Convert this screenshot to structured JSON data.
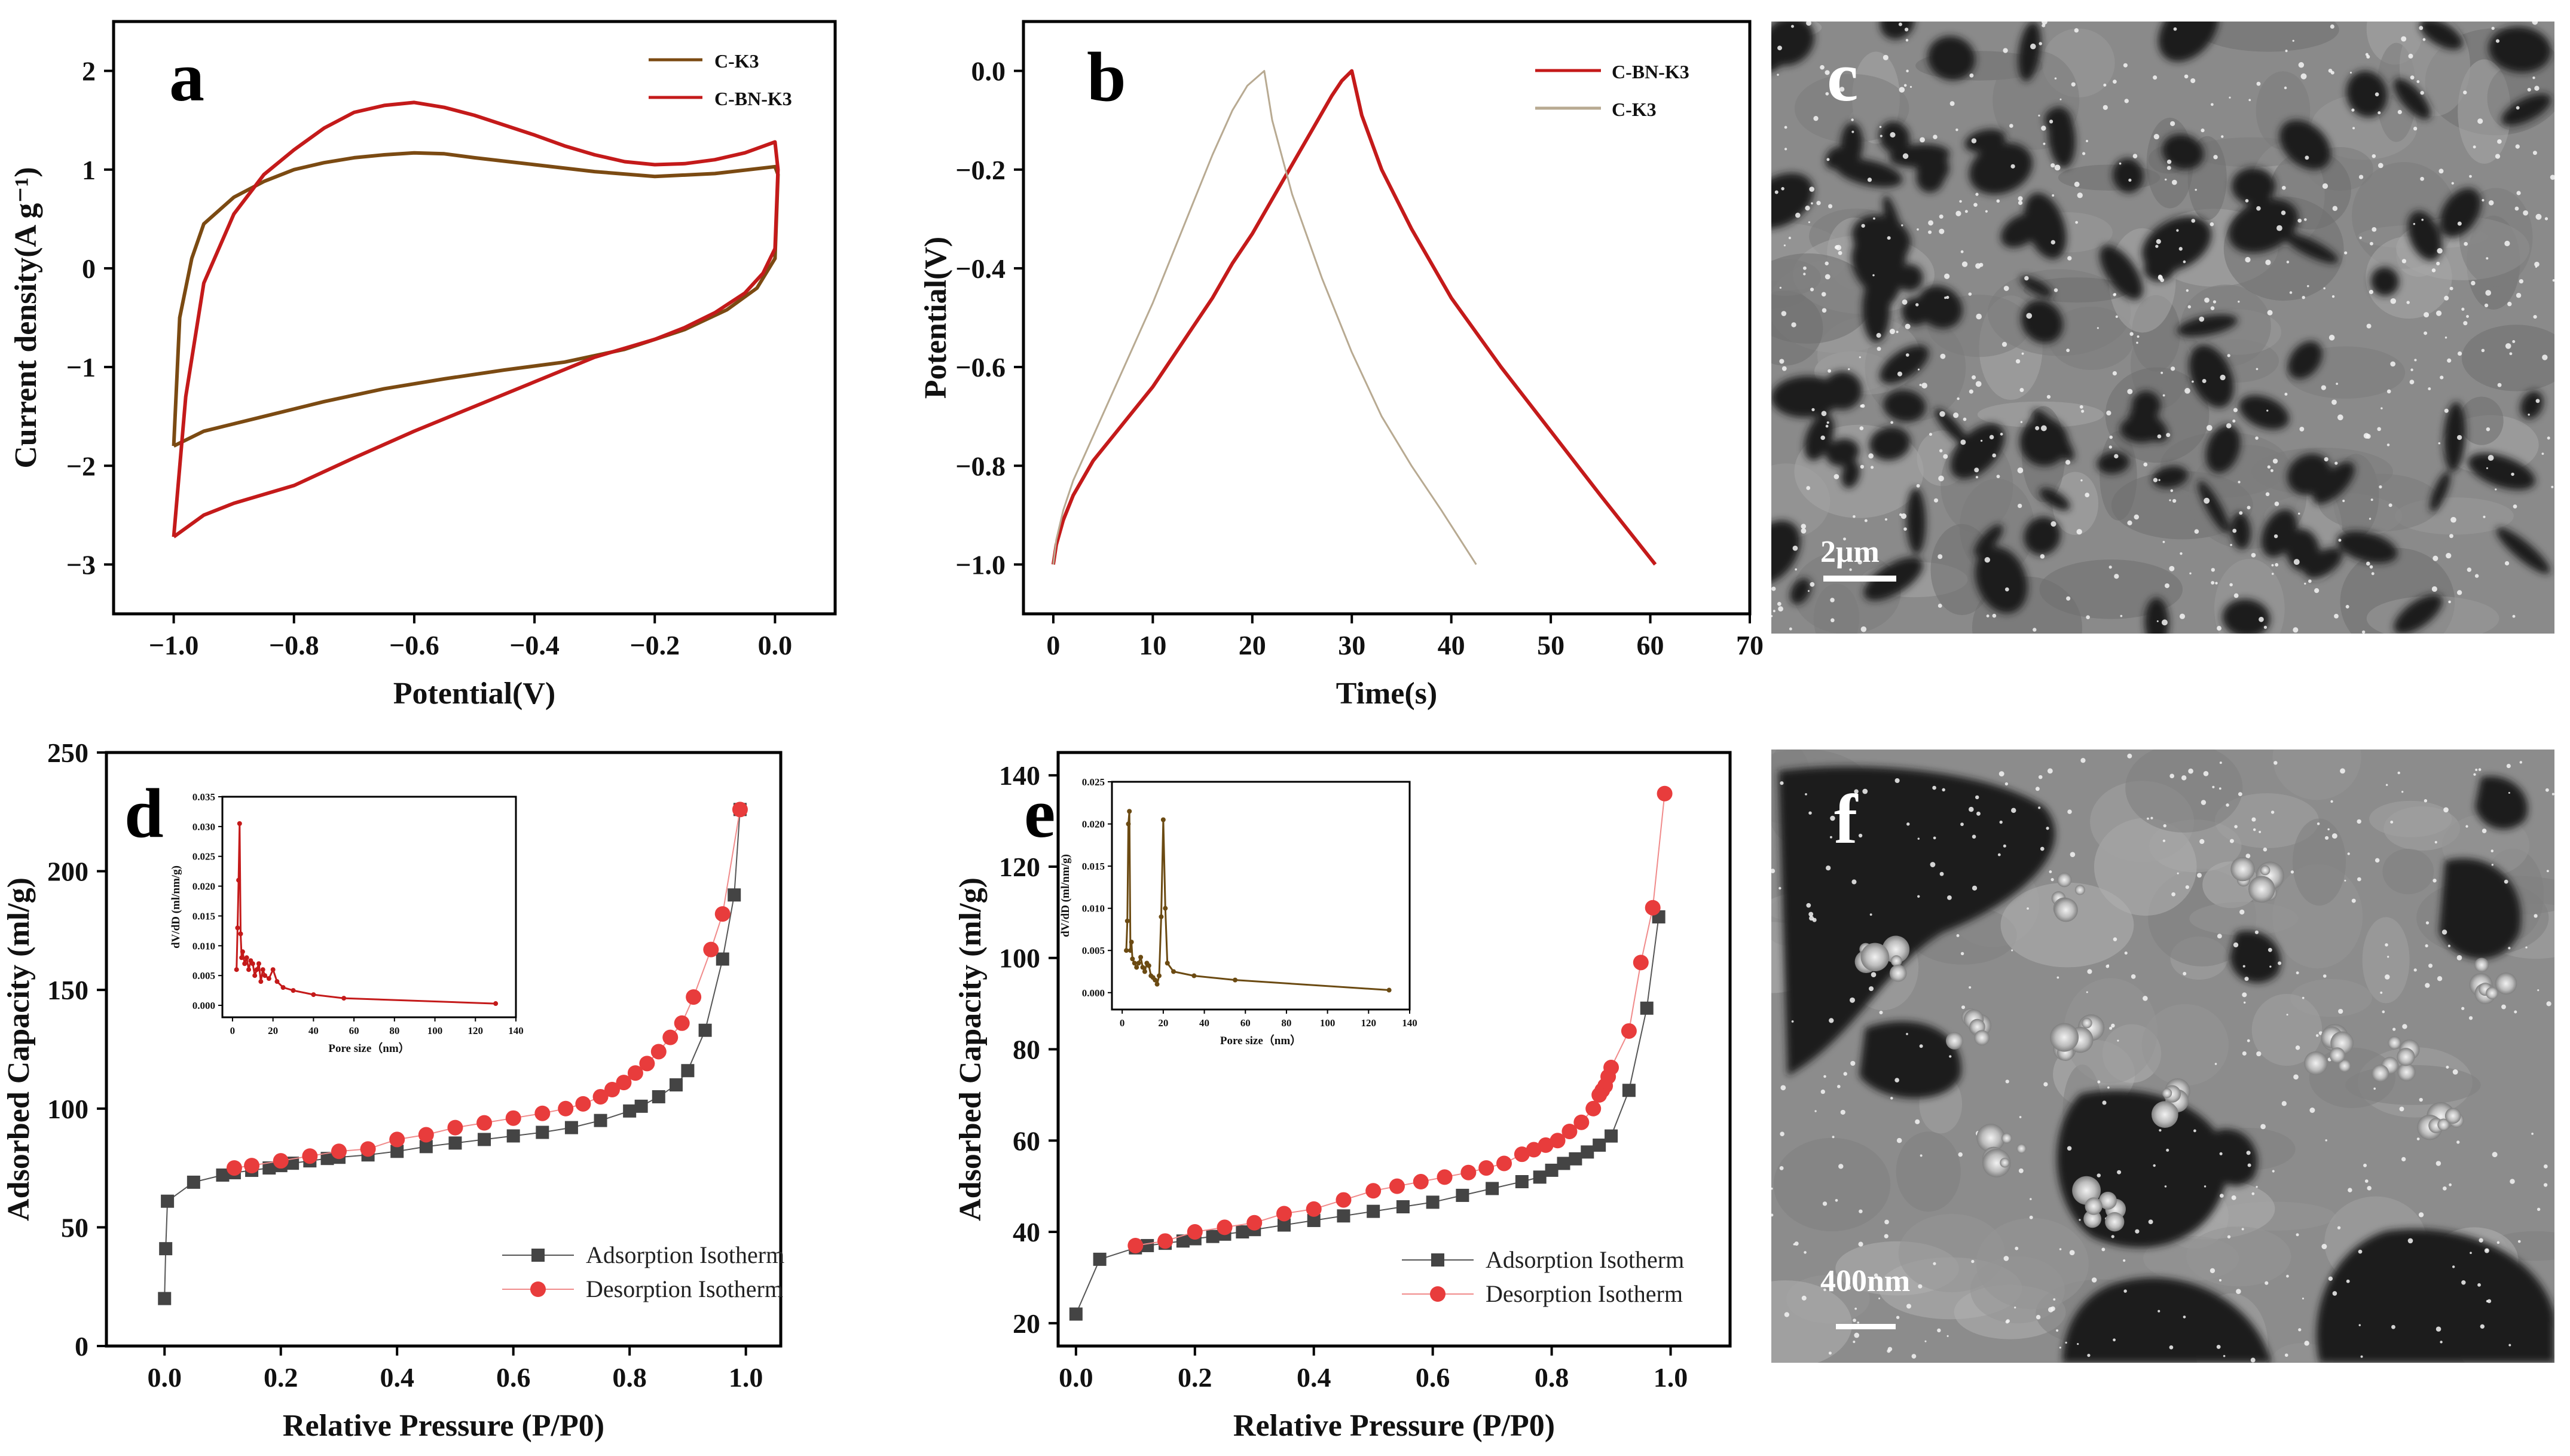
{
  "chart_data": [
    {
      "panel": "a",
      "type": "line",
      "xlabel": "Potential(V)",
      "ylabel": "Current density(A g⁻¹)",
      "xlim": [
        -1.1,
        0.1
      ],
      "ylim": [
        -3.5,
        2.5
      ],
      "xticks": [
        -1.0,
        -0.8,
        -0.6,
        -0.4,
        -0.2,
        0.0
      ],
      "xtick_labels": [
        "−1.0",
        "−0.8",
        "−0.6",
        "−0.4",
        "−0.2",
        "0.0"
      ],
      "yticks": [
        -3,
        -2,
        -1,
        0,
        1,
        2
      ],
      "ytick_labels": [
        "−3",
        "−2",
        "−1",
        "0",
        "1",
        "2"
      ],
      "legend": {
        "position": "top-right"
      },
      "series": [
        {
          "name": "C-K3",
          "color": "#7b4a12",
          "x": [
            -1.0,
            -0.99,
            -0.97,
            -0.95,
            -0.9,
            -0.85,
            -0.8,
            -0.75,
            -0.7,
            -0.65,
            -0.6,
            -0.55,
            -0.5,
            -0.4,
            -0.3,
            -0.2,
            -0.1,
            0.0,
            0.005,
            0.0,
            -0.03,
            -0.08,
            -0.15,
            -0.25,
            -0.35,
            -0.45,
            -0.55,
            -0.65,
            -0.75,
            -0.85,
            -0.95,
            -1.0
          ],
          "y": [
            -1.8,
            -0.5,
            0.1,
            0.45,
            0.72,
            0.88,
            1.0,
            1.07,
            1.12,
            1.15,
            1.17,
            1.16,
            1.12,
            1.05,
            0.98,
            0.93,
            0.96,
            1.03,
            0.95,
            0.1,
            -0.2,
            -0.42,
            -0.62,
            -0.82,
            -0.95,
            -1.03,
            -1.12,
            -1.22,
            -1.35,
            -1.5,
            -1.65,
            -1.8
          ]
        },
        {
          "name": "C-BN-K3",
          "color": "#c41a1a",
          "x": [
            -1.0,
            -0.98,
            -0.95,
            -0.9,
            -0.85,
            -0.8,
            -0.75,
            -0.7,
            -0.65,
            -0.6,
            -0.55,
            -0.5,
            -0.45,
            -0.4,
            -0.35,
            -0.3,
            -0.25,
            -0.2,
            -0.15,
            -0.1,
            -0.05,
            0.0,
            0.005,
            0.0,
            -0.02,
            -0.05,
            -0.1,
            -0.15,
            -0.2,
            -0.3,
            -0.4,
            -0.5,
            -0.6,
            -0.7,
            -0.8,
            -0.9,
            -0.95,
            -1.0
          ],
          "y": [
            -2.72,
            -1.3,
            -0.15,
            0.55,
            0.95,
            1.2,
            1.42,
            1.58,
            1.65,
            1.68,
            1.63,
            1.55,
            1.45,
            1.35,
            1.24,
            1.15,
            1.08,
            1.05,
            1.06,
            1.1,
            1.17,
            1.28,
            1.0,
            0.2,
            -0.05,
            -0.25,
            -0.45,
            -0.6,
            -0.72,
            -0.9,
            -1.15,
            -1.4,
            -1.65,
            -1.92,
            -2.2,
            -2.38,
            -2.5,
            -2.72
          ]
        }
      ]
    },
    {
      "panel": "b",
      "type": "line",
      "xlabel": "Time(s)",
      "ylabel": "Potential(V)",
      "xlim": [
        -3,
        70
      ],
      "ylim": [
        -1.1,
        0.1
      ],
      "xticks": [
        0,
        10,
        20,
        30,
        40,
        50,
        60,
        70
      ],
      "xtick_labels": [
        "0",
        "10",
        "20",
        "30",
        "40",
        "50",
        "60",
        "70"
      ],
      "yticks": [
        0.0,
        -0.2,
        -0.4,
        -0.6,
        -0.8,
        -1.0
      ],
      "ytick_labels": [
        "0.0",
        "−0.2",
        "−0.4",
        "−0.6",
        "−0.8",
        "−1.0"
      ],
      "legend": {
        "position": "top-right"
      },
      "series": [
        {
          "name": "C-BN-K3",
          "color": "#c41a1a",
          "x": [
            0,
            0.3,
            1,
            2,
            4,
            6,
            8,
            10,
            12,
            14,
            16,
            18,
            20,
            22,
            24,
            26,
            28,
            29,
            30,
            31,
            33,
            36,
            40,
            45,
            50,
            55,
            60.5
          ],
          "y": [
            -1.0,
            -0.96,
            -0.91,
            -0.86,
            -0.79,
            -0.74,
            -0.69,
            -0.64,
            -0.58,
            -0.52,
            -0.46,
            -0.39,
            -0.33,
            -0.26,
            -0.19,
            -0.12,
            -0.05,
            -0.02,
            0.0,
            -0.09,
            -0.2,
            -0.32,
            -0.46,
            -0.6,
            -0.73,
            -0.86,
            -1.0
          ]
        },
        {
          "name": "C-K3",
          "color": "#b8aa92",
          "x": [
            0,
            0.3,
            1,
            2,
            4,
            6,
            8,
            10,
            12,
            14,
            16,
            18,
            19.5,
            21.2,
            22,
            24,
            27,
            30,
            33,
            36,
            39,
            42.5
          ],
          "y": [
            -1.0,
            -0.95,
            -0.89,
            -0.83,
            -0.74,
            -0.65,
            -0.56,
            -0.47,
            -0.37,
            -0.27,
            -0.17,
            -0.08,
            -0.03,
            0.0,
            -0.1,
            -0.25,
            -0.42,
            -0.57,
            -0.7,
            -0.8,
            -0.89,
            -1.0
          ]
        }
      ]
    },
    {
      "panel": "d",
      "type": "scatter",
      "xlabel": "Relative Pressure (P/P0)",
      "ylabel": "Adsorbed Capacity (ml/g)",
      "xlim": [
        -0.1,
        1.06
      ],
      "ylim": [
        0,
        250
      ],
      "xticks": [
        0.0,
        0.2,
        0.4,
        0.6,
        0.8,
        1.0
      ],
      "xtick_labels": [
        "0.0",
        "0.2",
        "0.4",
        "0.6",
        "0.8",
        "1.0"
      ],
      "yticks": [
        0,
        50,
        100,
        150,
        200,
        250
      ],
      "ytick_labels": [
        "0",
        "50",
        "100",
        "150",
        "200",
        "250"
      ],
      "legend": {
        "position": "bottom-right"
      },
      "series": [
        {
          "name": "Adsorption Isotherm",
          "color": "#444444",
          "marker": "square",
          "x": [
            0.0,
            0.002,
            0.005,
            0.05,
            0.1,
            0.12,
            0.15,
            0.18,
            0.2,
            0.22,
            0.25,
            0.28,
            0.3,
            0.35,
            0.4,
            0.45,
            0.5,
            0.55,
            0.6,
            0.65,
            0.7,
            0.75,
            0.8,
            0.82,
            0.85,
            0.88,
            0.9,
            0.93,
            0.96,
            0.98,
            0.99
          ],
          "y": [
            20,
            41,
            61,
            69,
            72,
            73,
            74,
            75,
            76,
            77,
            78,
            79,
            79.5,
            80.5,
            82,
            84,
            85.5,
            87,
            88.5,
            90,
            92,
            95,
            99,
            101,
            105,
            110,
            116,
            133,
            163,
            190,
            226
          ]
        },
        {
          "name": "Desorption Isotherm",
          "color": "#e83c3c",
          "marker": "circle",
          "x": [
            0.99,
            0.96,
            0.94,
            0.91,
            0.89,
            0.87,
            0.85,
            0.83,
            0.81,
            0.79,
            0.77,
            0.75,
            0.72,
            0.69,
            0.65,
            0.6,
            0.55,
            0.5,
            0.45,
            0.4,
            0.35,
            0.3,
            0.25,
            0.2,
            0.15,
            0.12
          ],
          "y": [
            226,
            182,
            167,
            147,
            136,
            130,
            124,
            119,
            115,
            111,
            108,
            105,
            102,
            100,
            98,
            96,
            94,
            92,
            89,
            87,
            83,
            82,
            80,
            78,
            76,
            75
          ]
        }
      ],
      "inset": {
        "xlabel": "Pore size（nm）",
        "ylabel": "dV/dD (ml/nm/g)",
        "xlim": [
          -5,
          140
        ],
        "ylim": [
          -0.002,
          0.035
        ],
        "xticks": [
          0,
          20,
          40,
          60,
          80,
          100,
          120,
          140
        ],
        "xtick_labels": [
          "0",
          "20",
          "40",
          "60",
          "80",
          "100",
          "120",
          "140"
        ],
        "yticks": [
          0.0,
          0.005,
          0.01,
          0.015,
          0.02,
          0.025,
          0.03,
          0.035
        ],
        "ytick_labels": [
          "0.000",
          "0.005",
          "0.010",
          "0.015",
          "0.020",
          "0.025",
          "0.030",
          "0.035"
        ],
        "color": "#c41a1a",
        "x": [
          2,
          2.5,
          3,
          3.5,
          4,
          4.5,
          5,
          6,
          7,
          8,
          9,
          10,
          11,
          12,
          13,
          14,
          15,
          16,
          18,
          20,
          22,
          25,
          30,
          40,
          55,
          130
        ],
        "y": [
          0.006,
          0.013,
          0.021,
          0.0305,
          0.012,
          0.008,
          0.009,
          0.007,
          0.008,
          0.006,
          0.0075,
          0.007,
          0.005,
          0.006,
          0.007,
          0.004,
          0.006,
          0.005,
          0.0045,
          0.006,
          0.004,
          0.003,
          0.0025,
          0.0018,
          0.0012,
          0.0003
        ]
      }
    },
    {
      "panel": "e",
      "type": "scatter",
      "xlabel": "Relative Pressure (P/P0)",
      "ylabel": "Adsorbed Capacity (ml/g)",
      "xlim": [
        -0.03,
        1.1
      ],
      "ylim": [
        15,
        145
      ],
      "xticks": [
        0.0,
        0.2,
        0.4,
        0.6,
        0.8,
        1.0
      ],
      "xtick_labels": [
        "0.0",
        "0.2",
        "0.4",
        "0.6",
        "0.8",
        "1.0"
      ],
      "yticks": [
        20,
        40,
        60,
        80,
        100,
        120,
        140
      ],
      "ytick_labels": [
        "20",
        "40",
        "60",
        "80",
        "100",
        "120",
        "140"
      ],
      "legend": {
        "position": "bottom-right"
      },
      "series": [
        {
          "name": "Adsorption Isotherm",
          "color": "#444444",
          "marker": "square",
          "x": [
            0.0,
            0.04,
            0.1,
            0.12,
            0.15,
            0.18,
            0.2,
            0.23,
            0.25,
            0.28,
            0.3,
            0.35,
            0.4,
            0.45,
            0.5,
            0.55,
            0.6,
            0.65,
            0.7,
            0.75,
            0.78,
            0.8,
            0.82,
            0.84,
            0.86,
            0.88,
            0.9,
            0.93,
            0.96,
            0.98
          ],
          "y": [
            22,
            34,
            36.5,
            37,
            37.5,
            38,
            38.5,
            39,
            39.5,
            40,
            40.5,
            41.5,
            42.5,
            43.5,
            44.5,
            45.5,
            46.5,
            48,
            49.5,
            51,
            52,
            53.5,
            55,
            56,
            57.5,
            59,
            61,
            71,
            89,
            109
          ]
        },
        {
          "name": "Desorption Isotherm",
          "color": "#e83c3c",
          "marker": "circle",
          "x": [
            0.99,
            0.97,
            0.95,
            0.93,
            0.9,
            0.895,
            0.89,
            0.885,
            0.88,
            0.87,
            0.85,
            0.83,
            0.81,
            0.79,
            0.77,
            0.75,
            0.72,
            0.69,
            0.66,
            0.62,
            0.58,
            0.54,
            0.5,
            0.45,
            0.4,
            0.35,
            0.3,
            0.25,
            0.2,
            0.15,
            0.1
          ],
          "y": [
            136,
            111,
            99,
            84,
            76,
            74,
            72,
            71,
            70,
            67,
            64,
            62,
            60,
            59,
            58,
            57,
            55,
            54,
            53,
            52,
            51,
            50,
            49,
            47,
            45,
            44,
            42,
            41,
            40,
            38,
            37
          ]
        }
      ],
      "inset": {
        "xlabel": "Pore size（nm）",
        "ylabel": "dV/dD (ml/nm/g)",
        "xlim": [
          -5,
          140
        ],
        "ylim": [
          -0.002,
          0.025
        ],
        "xticks": [
          0,
          20,
          40,
          60,
          80,
          100,
          120,
          140
        ],
        "xtick_labels": [
          "0",
          "20",
          "40",
          "60",
          "80",
          "100",
          "120",
          "140"
        ],
        "yticks": [
          0.0,
          0.005,
          0.01,
          0.015,
          0.02,
          0.025
        ],
        "ytick_labels": [
          "0.000",
          "0.005",
          "0.010",
          "0.015",
          "0.020",
          "0.025"
        ],
        "color": "#6b4a12",
        "x": [
          2,
          2.5,
          3,
          3.5,
          4,
          4.5,
          5,
          6,
          7,
          8,
          9,
          10,
          11,
          12,
          13,
          14,
          15,
          16,
          17,
          18,
          19,
          20,
          21,
          22,
          25,
          35,
          55,
          130
        ],
        "y": [
          0.005,
          0.0085,
          0.02,
          0.0215,
          0.005,
          0.006,
          0.004,
          0.0035,
          0.003,
          0.0035,
          0.0042,
          0.003,
          0.0025,
          0.0035,
          0.0032,
          0.002,
          0.0018,
          0.0015,
          0.001,
          0.002,
          0.009,
          0.0205,
          0.01,
          0.0035,
          0.0025,
          0.002,
          0.0015,
          0.0003
        ]
      }
    }
  ],
  "panel_letters": {
    "a": "a",
    "b": "b",
    "c": "c",
    "d": "d",
    "e": "e",
    "f": "f"
  },
  "micrographs": {
    "c": {
      "scale_label": "2μm"
    },
    "f": {
      "scale_label": "400nm"
    }
  }
}
